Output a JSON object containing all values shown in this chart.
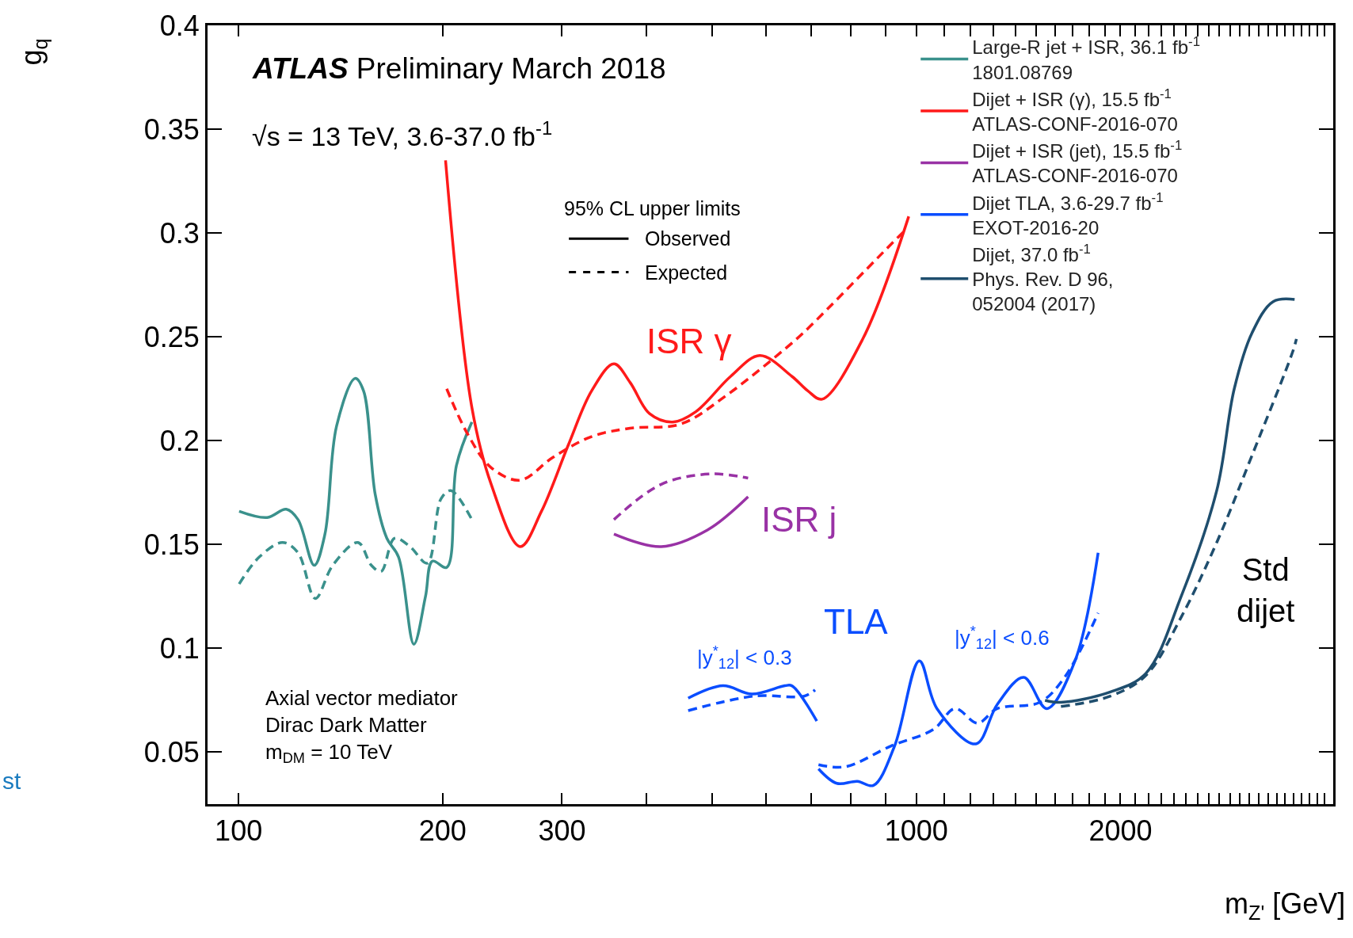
{
  "chart_data": {
    "type": "line",
    "xlabel": "m$_{Z'}$ [GeV]",
    "ylabel": "g$_{q}$",
    "log": "x",
    "xlim": [
      90,
      4120
    ],
    "ylim": [
      0.025,
      0.4
    ],
    "xticks": [
      100,
      200,
      300,
      1000,
      2000,
      {
        "value": 400,
        "label": null
      },
      {
        "value": 500,
        "label": null
      },
      {
        "value": 600,
        "label": null
      },
      {
        "value": 700,
        "label": null
      },
      {
        "value": 800,
        "label": null
      },
      {
        "value": 900,
        "label": null
      },
      {
        "value": 1100,
        "label": null
      },
      {
        "value": 1200,
        "label": null
      },
      {
        "value": 1300,
        "label": null
      },
      {
        "value": 1400,
        "label": null
      },
      {
        "value": 1500,
        "label": null
      },
      {
        "value": 1600,
        "label": null
      },
      {
        "value": 1700,
        "label": null
      },
      {
        "value": 1800,
        "label": null
      },
      {
        "value": 1900,
        "label": null
      },
      {
        "value": 2100,
        "label": null
      },
      {
        "value": 2200,
        "label": null
      },
      {
        "value": 2300,
        "label": null
      },
      {
        "value": 2400,
        "label": null
      },
      {
        "value": 2500,
        "label": null
      },
      {
        "value": 2600,
        "label": null
      },
      {
        "value": 2700,
        "label": null
      },
      {
        "value": 2800,
        "label": null
      },
      {
        "value": 2900,
        "label": null
      },
      {
        "value": 3000,
        "label": null
      },
      {
        "value": 3100,
        "label": null
      },
      {
        "value": 3200,
        "label": null
      },
      {
        "value": 3300,
        "label": null
      },
      {
        "value": 3400,
        "label": null
      },
      {
        "value": 3500,
        "label": null
      },
      {
        "value": 3600,
        "label": null
      },
      {
        "value": 3700,
        "label": null
      },
      {
        "value": 3800,
        "label": null
      },
      {
        "value": 3900,
        "label": null
      },
      {
        "value": 4000,
        "label": null
      }
    ],
    "yticks": [
      0.05,
      0.1,
      0.15,
      0.2,
      0.25,
      0.3,
      0.35,
      0.4
    ],
    "grid": false,
    "legend": "top right",
    "marker": "none",
    "series": [
      {
        "name": "Large-R jet + ISR, 36.1 fb$^{-1}$\n1801.08769",
        "color": "#3a918c",
        "line_style": "solid",
        "x": [
          100.2,
          110.2,
          117.6,
          122.4,
          129.3,
          134.1,
          139.5,
          148.6,
          152.9,
          159.1,
          165.5,
          172.2,
          181.4,
          188.7,
          193.2,
          202.8,
          209.6,
          220.9
        ],
        "values": [
          0.166,
          0.163,
          0.167,
          0.162,
          0.14,
          0.155,
          0.207,
          0.23,
          0.224,
          0.174,
          0.153,
          0.144,
          0.102,
          0.125,
          0.142,
          0.139,
          0.188,
          0.209
        ]
      },
      {
        "color": "#3a918c",
        "line_style": "dashed",
        "x": [
          100.2,
          107.3,
          116.1,
          122.4,
          129.8,
          137.7,
          150,
          157,
          162.3,
          169.9,
          179,
          189.9,
          198.9,
          205.6,
          220.9
        ],
        "values": [
          0.131,
          0.144,
          0.151,
          0.146,
          0.124,
          0.14,
          0.151,
          0.14,
          0.137,
          0.153,
          0.149,
          0.141,
          0.172,
          0.176,
          0.162
        ]
      },
      {
        "name": "Dijet + ISR (γ), 15.5 fb$^{-1}$\nATLAS-CONF-2016-070",
        "color": "#ff1a1a",
        "line_style": "solid",
        "x": [
          202,
          220.9,
          235.9,
          260.3,
          279.8,
          306.6,
          331.8,
          357.9,
          378.2,
          404,
          437,
          472.8,
          532.2,
          587.3,
          655,
          691.6,
          725.8,
          833.5,
          974.3
        ],
        "values": [
          0.335,
          0.216,
          0.179,
          0.149,
          0.166,
          0.198,
          0.224,
          0.237,
          0.228,
          0.213,
          0.209,
          0.214,
          0.231,
          0.241,
          0.231,
          0.224,
          0.22,
          0.249,
          0.308
        ]
      },
      {
        "color": "#ff1a1a",
        "line_style": "dashed",
        "x": [
          202.8,
          217.9,
          235.9,
          260.3,
          291,
          331.8,
          378.2,
          448.7,
          525.4,
          655,
          691.6,
          939.8,
          968
        ],
        "values": [
          0.225,
          0.203,
          0.187,
          0.181,
          0.192,
          0.202,
          0.206,
          0.208,
          0.222,
          0.247,
          0.254,
          0.298,
          0.302
        ]
      },
      {
        "name": "Dijet + ISR (jet), 15.5 fb$^{-1}$\nATLAS-CONF-2016-070",
        "color": "#9932a5",
        "line_style": "solid",
        "x": [
          357.9,
          420.3,
          491.8,
          564.6
        ],
        "values": [
          0.155,
          0.149,
          0.157,
          0.173
        ]
      },
      {
        "color": "#9932a5",
        "line_style": "dashed",
        "x": [
          357.9,
          420.3,
          498.3,
          564.6
        ],
        "values": [
          0.162,
          0.179,
          0.184,
          0.182
        ]
      },
      {
        "name": "Dijet TLA, 3.6-29.7 fb$^{-1}$\nEXOT-2016-20",
        "color": "#0a4dff",
        "line_style": "solid",
        "x": [
          460.6,
          518.3,
          571.9,
          639.7,
          655,
          712.9
        ],
        "values": [
          0.076,
          0.082,
          0.078,
          0.082,
          0.082,
          0.065
        ]
      },
      {
        "color": "#0a4dff",
        "line_style": "dashed",
        "x": [
          460.6,
          575.6,
          683,
          708.8
        ],
        "values": [
          0.07,
          0.077,
          0.077,
          0.08
        ]
      },
      {
        "color": "#0a4dff",
        "line_style": "solid",
        "x": [
          717.1,
          763.2,
          818.4,
          864.3,
          928.6,
          1010,
          1072.4,
          1224,
          1316,
          1440,
          1557,
          1714,
          1854
        ],
        "values": [
          0.042,
          0.035,
          0.036,
          0.034,
          0.053,
          0.094,
          0.071,
          0.054,
          0.073,
          0.086,
          0.071,
          0.094,
          0.146
        ]
      },
      {
        "color": "#0a4dff",
        "line_style": "dashed",
        "x": [
          717.1,
          785,
          917.6,
          1060,
          1140,
          1231,
          1316,
          1520,
          1654,
          1854
        ],
        "values": [
          0.044,
          0.043,
          0.053,
          0.061,
          0.071,
          0.064,
          0.071,
          0.074,
          0.086,
          0.117
        ]
      },
      {
        "name": "Dijet, 37.0 fb$^{-1}$\nPhys. Rev. D 96,\n052004 (2017)",
        "color": "#1f4e6e",
        "line_style": "solid",
        "x": [
          1548,
          1634,
          1933,
          2181,
          2458,
          2774,
          2944,
          3128,
          3360,
          3614
        ],
        "values": [
          0.075,
          0.074,
          0.079,
          0.088,
          0.125,
          0.176,
          0.225,
          0.252,
          0.267,
          0.268
        ]
      },
      {
        "color": "#1f4e6e",
        "line_style": "dashed",
        "x": [
          1634,
          1933,
          2181,
          2458,
          2774,
          3128,
          3592,
          3636
        ],
        "values": [
          0.072,
          0.077,
          0.087,
          0.115,
          0.151,
          0.193,
          0.243,
          0.249
        ]
      }
    ],
    "annotations": [
      "ATLAS Preliminary March 2018",
      "√s = 13 TeV, 3.6-37.0 fb$^{-1}$",
      "95% CL upper limits",
      "Observed",
      "Expected",
      "Axial vector mediator\nDirac Dark Matter\nm$_{DM}$ = 10 TeV",
      "st",
      "ISR γ",
      "ISR j",
      "TLA",
      "|y$^{*}$$_{12}$| < 0.3",
      "|y$^{*}$$_{12}$| < 0.6",
      "Std\ndijet"
    ]
  }
}
